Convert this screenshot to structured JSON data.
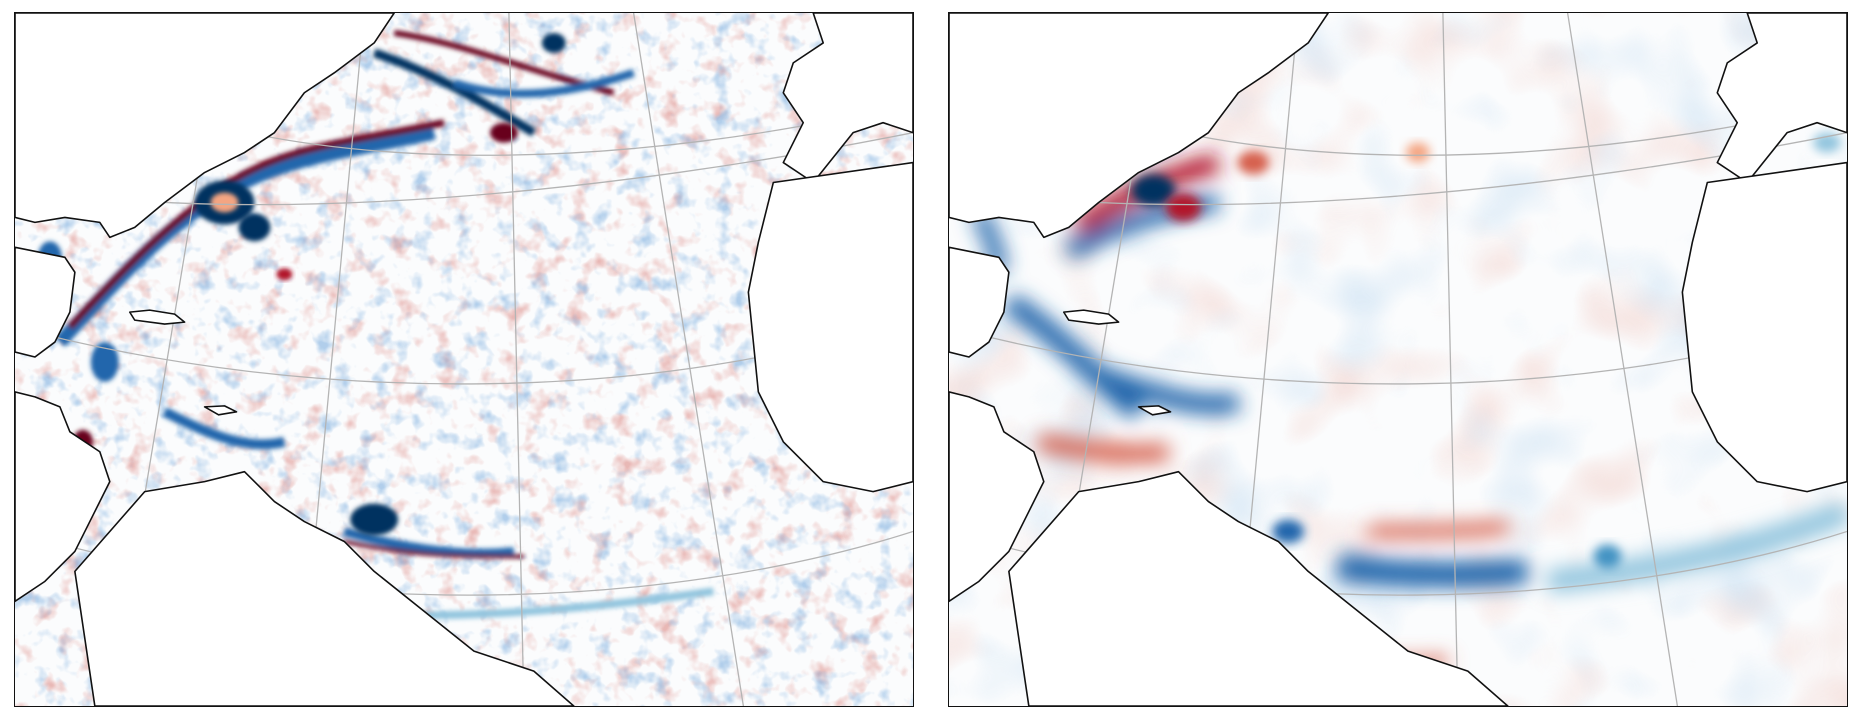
{
  "figure": {
    "panels": [
      {
        "id": "left",
        "description_name": "high-resolution-eddy-field",
        "colormap": "RdBu_r"
      },
      {
        "id": "right",
        "description_name": "smoothed-eddy-field",
        "colormap": "RdBu_r"
      }
    ],
    "colors": {
      "red": "#b2182b",
      "red_light": "#f4a582",
      "blue": "#2166ac",
      "blue_light": "#92c5de",
      "land": "#ffffff",
      "coast": "#111111",
      "graticule": "#b4b4b4",
      "frame": "#111111"
    }
  }
}
